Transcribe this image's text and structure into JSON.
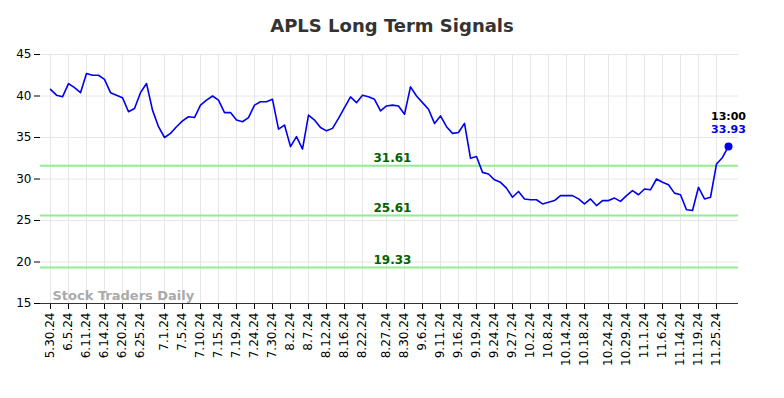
{
  "chart_data": {
    "type": "line",
    "title": "APLS Long Term Signals",
    "categories": [
      "5.30.24",
      null,
      null,
      "6.5.24",
      null,
      null,
      "6.11.24",
      null,
      null,
      "6.14.24",
      null,
      null,
      "6.20.24",
      null,
      null,
      "6.25.24",
      null,
      null,
      null,
      "7.1.24",
      null,
      null,
      "7.5.24",
      null,
      null,
      "7.10.24",
      null,
      null,
      "7.15.24",
      null,
      null,
      "7.19.24",
      null,
      null,
      "7.24.24",
      null,
      null,
      "7.30.24",
      null,
      null,
      "8.2.24",
      null,
      null,
      "8.7.24",
      null,
      null,
      "8.12.24",
      null,
      null,
      "8.16.24",
      null,
      null,
      "8.22.24",
      null,
      null,
      null,
      "8.27.24",
      null,
      null,
      "8.30.24",
      null,
      null,
      "9.6.24",
      null,
      null,
      "9.11.24",
      null,
      null,
      "9.16.24",
      null,
      null,
      "9.19.24",
      null,
      null,
      "9.24.24",
      null,
      null,
      "9.27.24",
      null,
      null,
      "10.2.24",
      null,
      null,
      "10.8.24",
      null,
      null,
      "10.14.24",
      null,
      null,
      "10.18.24",
      null,
      null,
      null,
      "10.24.24",
      null,
      null,
      "10.29.24",
      null,
      null,
      "11.1.24",
      null,
      null,
      "11.6.24",
      null,
      null,
      "11.14.24",
      null,
      null,
      "11.19.24",
      null,
      null,
      "11.25.24",
      null,
      null
    ],
    "values": [
      40.8,
      40.1,
      39.9,
      41.5,
      41.0,
      40.4,
      42.7,
      42.5,
      42.5,
      42.0,
      40.4,
      40.1,
      39.8,
      38.1,
      38.5,
      40.4,
      41.5,
      38.3,
      36.3,
      35.0,
      35.5,
      36.3,
      37.0,
      37.5,
      37.4,
      38.9,
      39.5,
      40.0,
      39.5,
      38.0,
      38.0,
      37.1,
      36.9,
      37.4,
      38.9,
      39.3,
      39.3,
      39.6,
      36.0,
      36.5,
      33.9,
      35.1,
      33.6,
      37.7,
      37.1,
      36.2,
      35.8,
      36.1,
      37.3,
      38.6,
      39.9,
      39.2,
      40.1,
      39.9,
      39.6,
      38.2,
      38.8,
      38.9,
      38.8,
      37.8,
      41.1,
      40.0,
      39.2,
      38.4,
      36.7,
      37.6,
      36.3,
      35.5,
      35.6,
      36.7,
      32.5,
      32.7,
      30.8,
      30.6,
      29.9,
      29.6,
      28.9,
      27.8,
      28.5,
      27.6,
      27.5,
      27.5,
      27.0,
      27.2,
      27.4,
      28.0,
      28.0,
      28.0,
      27.6,
      27.0,
      27.6,
      26.8,
      27.4,
      27.4,
      27.7,
      27.3,
      28.0,
      28.6,
      28.1,
      28.8,
      28.7,
      30.0,
      29.6,
      29.3,
      28.3,
      28.1,
      26.3,
      26.2,
      29.0,
      27.6,
      27.8,
      31.8,
      32.6,
      33.93
    ],
    "color": "#0000ee",
    "ylim": [
      15,
      45
    ],
    "yticks": [
      15,
      20,
      25,
      30,
      35,
      40,
      45
    ],
    "grid": true,
    "signal_levels": [
      31.61,
      25.61,
      19.33
    ],
    "signal_color": "#90ee90",
    "signal_label_color": "#006400",
    "last_point": {
      "time": "13:00",
      "value_label": "33.93"
    },
    "watermark": "Stock Traders Daily"
  }
}
